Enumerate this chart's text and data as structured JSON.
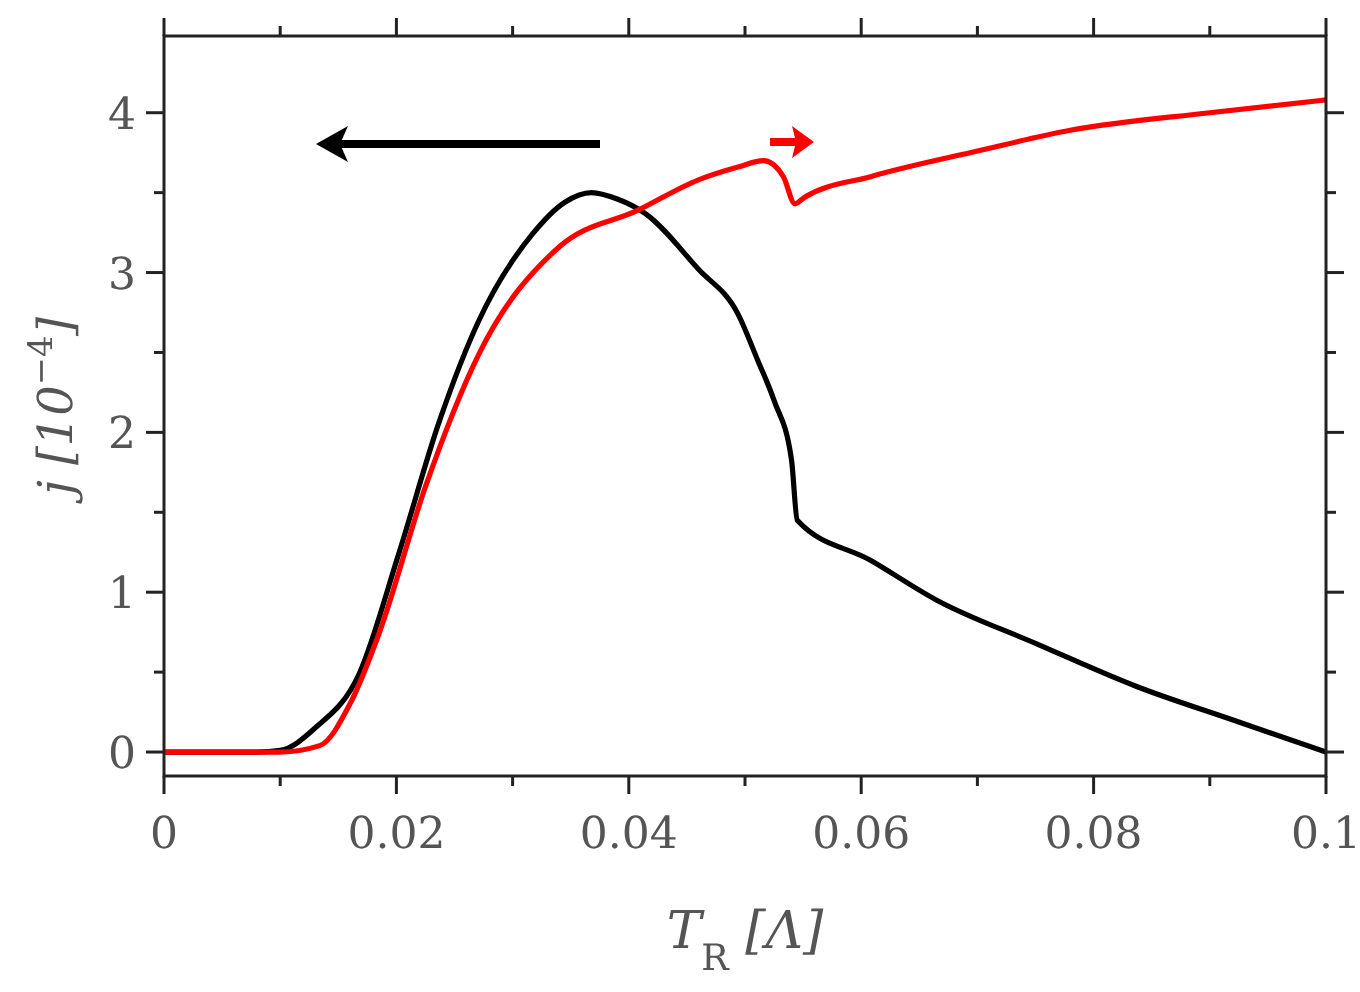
{
  "chart_data": {
    "type": "line",
    "xlabel": "T$_{R}$ [Λ]",
    "ylabel": "j [10$^{−4}$]",
    "xlim": [
      0,
      0.1
    ],
    "ylim": [
      -0.15,
      4.48
    ],
    "xticks": [
      0,
      {
        "value": 0.01,
        "label": null
      },
      0.02,
      {
        "value": 0.03,
        "label": null
      },
      0.04,
      {
        "value": 0.05,
        "label": null
      },
      0.06,
      {
        "value": 0.07,
        "label": null
      },
      0.08,
      {
        "value": 0.09,
        "label": null
      },
      0.1
    ],
    "yticks": [
      0,
      {
        "value": 0.5,
        "label": null
      },
      1,
      {
        "value": 1.5,
        "label": null
      },
      2,
      {
        "value": 2.5,
        "label": null
      },
      3,
      {
        "value": 3.5,
        "label": null
      },
      4
    ],
    "grid": false,
    "marker": "none",
    "line_style": "solid",
    "series": [
      {
        "color": "#000000",
        "x": [
          0,
          0.008,
          0.01,
          0.013,
          0.0168,
          0.0202,
          0.0237,
          0.0271,
          0.0317,
          0.0345,
          0.0368,
          0.039,
          0.0414,
          0.046,
          0.0494,
          0.0511,
          0.0525,
          0.054,
          0.0545,
          0.0608,
          0.0665,
          0.075,
          0.0837,
          0.092,
          0.1
        ],
        "values": [
          0,
          0,
          0.01,
          0.15,
          0.49,
          1.24,
          2.07,
          2.7,
          3.24,
          3.44,
          3.5,
          3.46,
          3.37,
          3.02,
          2.74,
          2.45,
          2.2,
          1.83,
          1.45,
          1.2,
          0.95,
          0.68,
          0.41,
          0.2,
          0
        ]
      },
      {
        "color": "#ff0000",
        "x": [
          0,
          0.01,
          0.0134,
          0.016,
          0.0185,
          0.0225,
          0.0271,
          0.034,
          0.0408,
          0.046,
          0.0494,
          0.0516,
          0.0533,
          0.0543,
          0.0551,
          0.0608,
          0.07,
          0.078,
          0.09,
          0.1
        ],
        "values": [
          0,
          0,
          0.04,
          0.3,
          0.74,
          1.66,
          2.49,
          3.16,
          3.39,
          3.58,
          3.66,
          3.7,
          3.6,
          3.43,
          3.47,
          3.6,
          3.76,
          3.89,
          4.0,
          4.08
        ]
      }
    ]
  }
}
